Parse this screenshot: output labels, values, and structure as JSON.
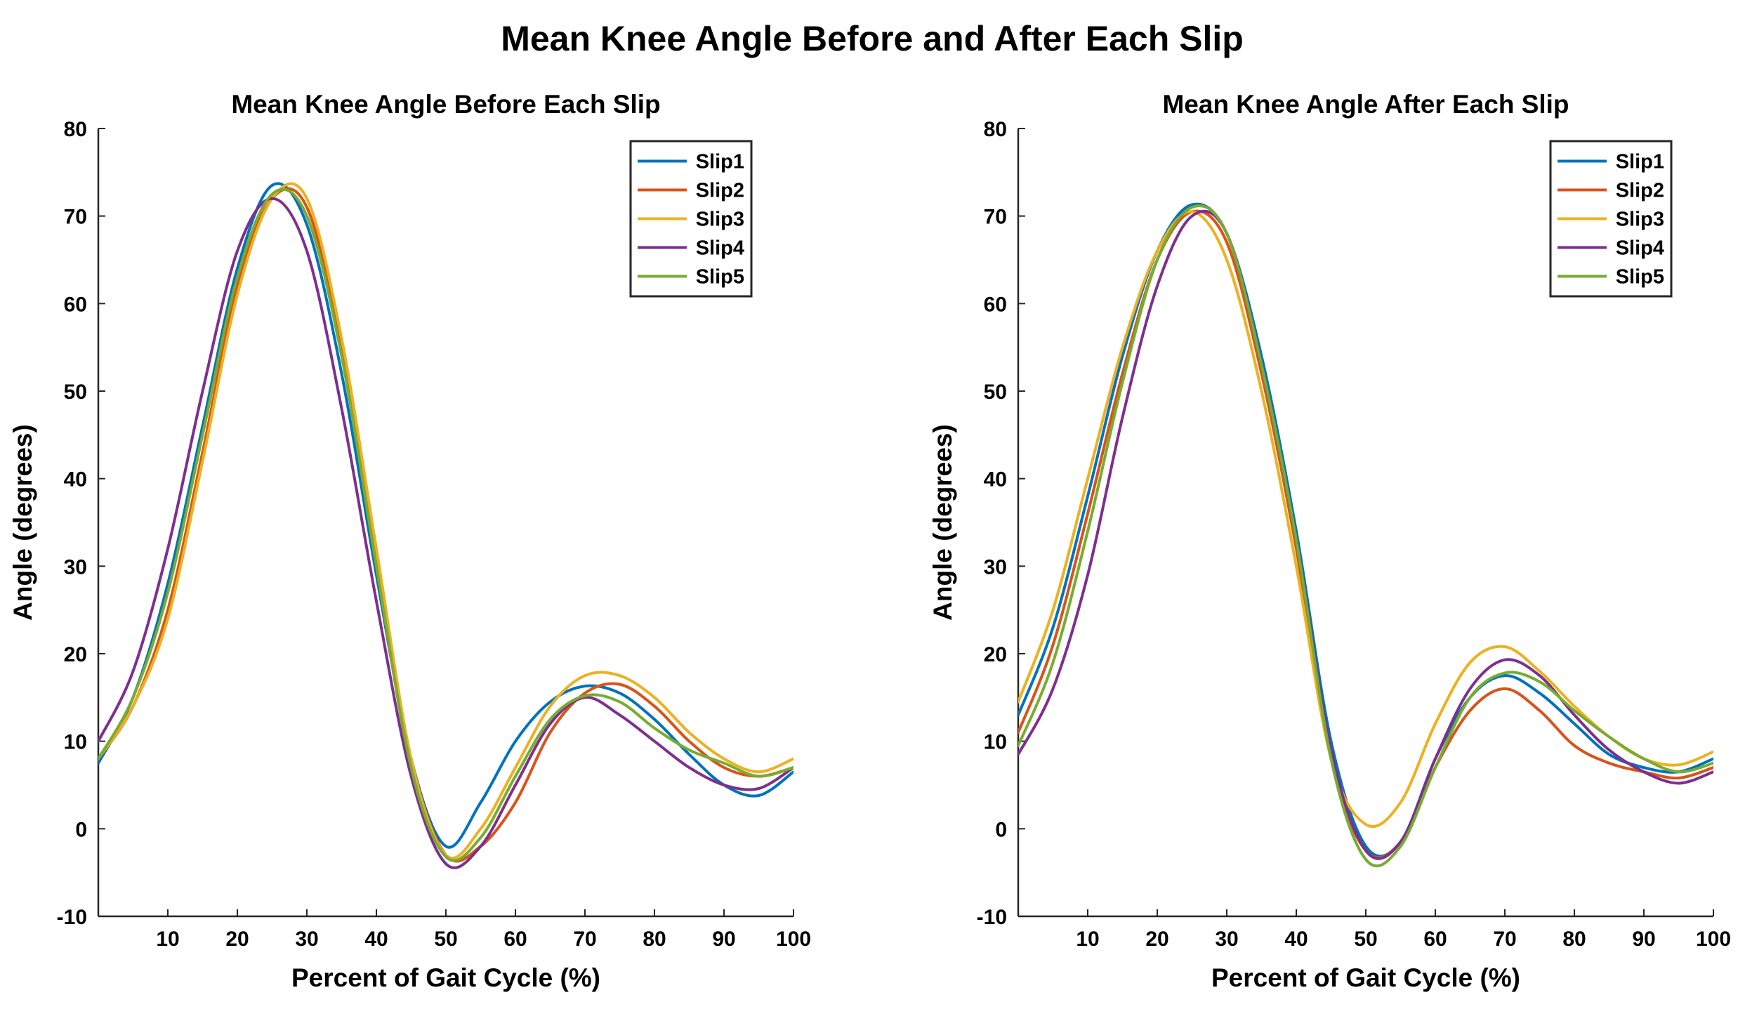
{
  "figure": {
    "title": "Mean Knee Angle Before and After Each Slip"
  },
  "chart_data": [
    {
      "type": "line",
      "title": "Mean Knee Angle Before Each Slip",
      "xlabel": "Percent of Gait Cycle (%)",
      "ylabel": "Angle (degrees)",
      "xlim": [
        0,
        100
      ],
      "ylim": [
        -10,
        80
      ],
      "xticks": [
        "10",
        "20",
        "30",
        "40",
        "50",
        "60",
        "70",
        "80",
        "90",
        "100"
      ],
      "yticks": [
        "-10",
        "0",
        "10",
        "20",
        "30",
        "40",
        "50",
        "60",
        "70",
        "80"
      ],
      "grid": false,
      "legend_position": "top-right",
      "x": [
        0,
        5,
        10,
        15,
        20,
        25,
        30,
        35,
        40,
        45,
        50,
        55,
        60,
        65,
        70,
        75,
        80,
        85,
        90,
        95,
        100
      ],
      "series": [
        {
          "name": "Slip1",
          "color": "#0072BD",
          "values": [
            7.5,
            15,
            28,
            46,
            64,
            73.5,
            69,
            52,
            29,
            8,
            -2,
            3,
            10,
            14.5,
            16.3,
            15.5,
            12.5,
            8.5,
            5,
            3.8,
            6.5
          ]
        },
        {
          "name": "Slip2",
          "color": "#D95319",
          "values": [
            8,
            14,
            25,
            43,
            62,
            72,
            71,
            55,
            31,
            8,
            -3,
            -2,
            3,
            11,
            15.5,
            16.5,
            14,
            10,
            7,
            6,
            7
          ]
        },
        {
          "name": "Slip3",
          "color": "#EDB120",
          "values": [
            8,
            14,
            24,
            42,
            61,
            72,
            72,
            56,
            32,
            8,
            -3,
            0,
            7,
            14,
            17.5,
            17.5,
            15,
            11,
            8,
            6.5,
            8
          ]
        },
        {
          "name": "Slip4",
          "color": "#7E2F8E",
          "values": [
            10,
            18,
            32,
            50,
            66,
            72,
            66,
            48,
            26,
            6,
            -4,
            -2,
            5,
            12,
            15,
            13,
            10,
            7,
            5,
            4.6,
            7
          ]
        },
        {
          "name": "Slip5",
          "color": "#77AC30",
          "values": [
            8,
            15,
            27,
            45,
            63,
            72.5,
            70,
            54,
            30,
            7,
            -3.2,
            -1,
            6,
            12.5,
            15.2,
            14.5,
            11.5,
            9,
            7.5,
            6,
            7
          ]
        }
      ]
    },
    {
      "type": "line",
      "title": "Mean Knee Angle After Each Slip",
      "xlabel": "Percent of Gait Cycle (%)",
      "ylabel": "Angle (degrees)",
      "xlim": [
        0,
        100
      ],
      "ylim": [
        -10,
        80
      ],
      "xticks": [
        "10",
        "20",
        "30",
        "40",
        "50",
        "60",
        "70",
        "80",
        "90",
        "100"
      ],
      "yticks": [
        "-10",
        "0",
        "10",
        "20",
        "30",
        "40",
        "50",
        "60",
        "70",
        "80"
      ],
      "grid": false,
      "legend_position": "top-right",
      "x": [
        0,
        5,
        10,
        15,
        20,
        25,
        30,
        35,
        40,
        45,
        50,
        55,
        60,
        65,
        70,
        75,
        80,
        85,
        90,
        95,
        100
      ],
      "series": [
        {
          "name": "Slip1",
          "color": "#0072BD",
          "values": [
            13,
            23,
            38,
            54,
            66,
            71.3,
            68,
            54,
            34,
            10,
            -2,
            -1.5,
            8,
            15,
            17.5,
            15.5,
            12,
            8.5,
            7,
            6.5,
            8
          ]
        },
        {
          "name": "Slip2",
          "color": "#D95319",
          "values": [
            11,
            21,
            36,
            52,
            65,
            70.5,
            67,
            52,
            32,
            8,
            -2.5,
            -1.5,
            7,
            13.5,
            16,
            13.5,
            9.5,
            7.5,
            6.5,
            5.8,
            7
          ]
        },
        {
          "name": "Slip3",
          "color": "#EDB120",
          "values": [
            14.5,
            25,
            40,
            55,
            66,
            70.5,
            65,
            50,
            30,
            8,
            0.5,
            3,
            12,
            19,
            20.8,
            18,
            14,
            10.5,
            8,
            7.3,
            8.8
          ]
        },
        {
          "name": "Slip4",
          "color": "#7E2F8E",
          "values": [
            8.5,
            16,
            29,
            47,
            62,
            70,
            68,
            53,
            33,
            9,
            -2.5,
            -1.5,
            8,
            16,
            19.3,
            17.5,
            13,
            9,
            6.5,
            5.2,
            6.5
          ]
        },
        {
          "name": "Slip5",
          "color": "#77AC30",
          "values": [
            9.5,
            19,
            34,
            51,
            65,
            71,
            68,
            53,
            33,
            8,
            -3.5,
            -2,
            7,
            15,
            17.8,
            16.8,
            13.5,
            10.5,
            8,
            6.5,
            7.5
          ]
        }
      ]
    }
  ]
}
